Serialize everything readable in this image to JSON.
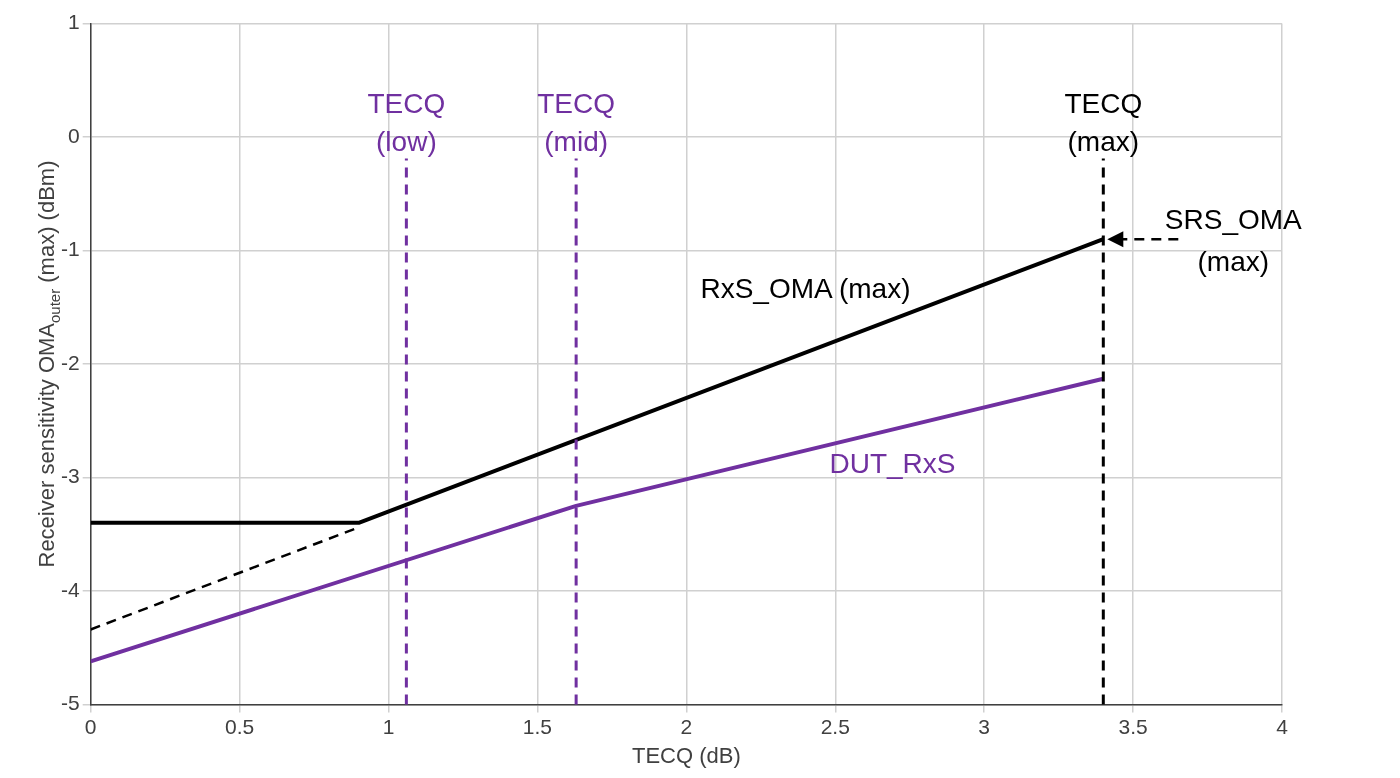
{
  "chart_data": {
    "type": "line",
    "xlabel": "TECQ (dB)",
    "ylabel": "Receiver sensitivity OMA$_{outer}$ (max) (dBm)",
    "xlim": [
      0,
      4
    ],
    "xticks": [
      0,
      0.5,
      1,
      1.5,
      2,
      2.5,
      3,
      3.5,
      4
    ],
    "ylim": [
      -5,
      1
    ],
    "yticks": [
      -5,
      -4,
      -3,
      -2,
      -1,
      0,
      1
    ],
    "grid": true,
    "legend": false,
    "marker": "none",
    "series": [
      {
        "color": "#000000",
        "x": [
          0,
          0.9,
          3.4
        ],
        "values": [
          -3.4,
          -3.4,
          -0.9
        ],
        "line_style": "solid"
      },
      {
        "color": "#000000",
        "x": [
          0,
          0.9
        ],
        "values": [
          -4.34,
          -3.44
        ],
        "line_style": "dashed"
      },
      {
        "color": "#7030a0",
        "x": [
          0,
          1.63,
          3.4
        ],
        "values": [
          -4.62,
          -3.25,
          -2.13
        ],
        "line_style": "solid"
      }
    ],
    "ref_lines": [
      {
        "axis": "x",
        "value": 1.06,
        "label": "TECQ (low)",
        "color": "#7030a0",
        "line_style": "dashed"
      },
      {
        "axis": "x",
        "value": 1.63,
        "label": "TECQ (mid)",
        "color": "#7030a0",
        "line_style": "dashed"
      },
      {
        "axis": "x",
        "value": 3.4,
        "label": "TECQ (max)",
        "color": "#000000",
        "line_style": "dashed"
      }
    ],
    "annotations": [
      "RxS_OMA (max)",
      "DUT_RxS",
      {
        "text": "SRS_OMA (max)",
        "x": 3.4,
        "y": -0.9
      }
    ]
  }
}
